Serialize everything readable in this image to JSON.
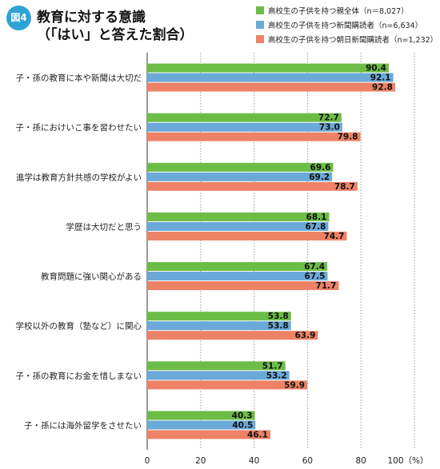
{
  "figure": {
    "badge": "図4",
    "title_line1": "教育に対する意識",
    "title_line2": "（「はい」と答えた割合）"
  },
  "chart_data": {
    "type": "bar",
    "orientation": "horizontal",
    "title": "教育に対する意識（「はい」と答えた割合）",
    "categories": [
      "子・孫の教育に本や新聞は大切だ",
      "子・孫におけいこ事を習わせたい",
      "進学は教育方針共感の学校がよい",
      "学歴は大切だと思う",
      "教育問題に強い関心がある",
      "学校以外の教育（塾など）に関心",
      "子・孫の教育にお金を惜しまない",
      "子・孫には海外留学をさせたい"
    ],
    "series": [
      {
        "name": "高校生の子供を持つ親全体（n＝8,027）",
        "color": "#6cbd45",
        "values": [
          90.4,
          72.7,
          69.6,
          68.1,
          67.4,
          53.8,
          51.7,
          40.3
        ]
      },
      {
        "name": "高校生の子供を持つ新聞購読者（n=6,634）",
        "color": "#6aa9d8",
        "values": [
          92.1,
          73.0,
          69.2,
          67.8,
          67.5,
          53.8,
          53.2,
          40.5
        ]
      },
      {
        "name": "高校生の子供を持つ朝日新聞購読者（n=1,232）",
        "color": "#ee8266",
        "values": [
          92.8,
          79.8,
          78.7,
          74.7,
          71.7,
          63.9,
          59.9,
          46.1
        ]
      }
    ],
    "x_ticks": [
      "0",
      "20",
      "40",
      "60",
      "80",
      "100（%）"
    ],
    "xlim": [
      0,
      100
    ],
    "grid": true,
    "legend": "top-right"
  }
}
